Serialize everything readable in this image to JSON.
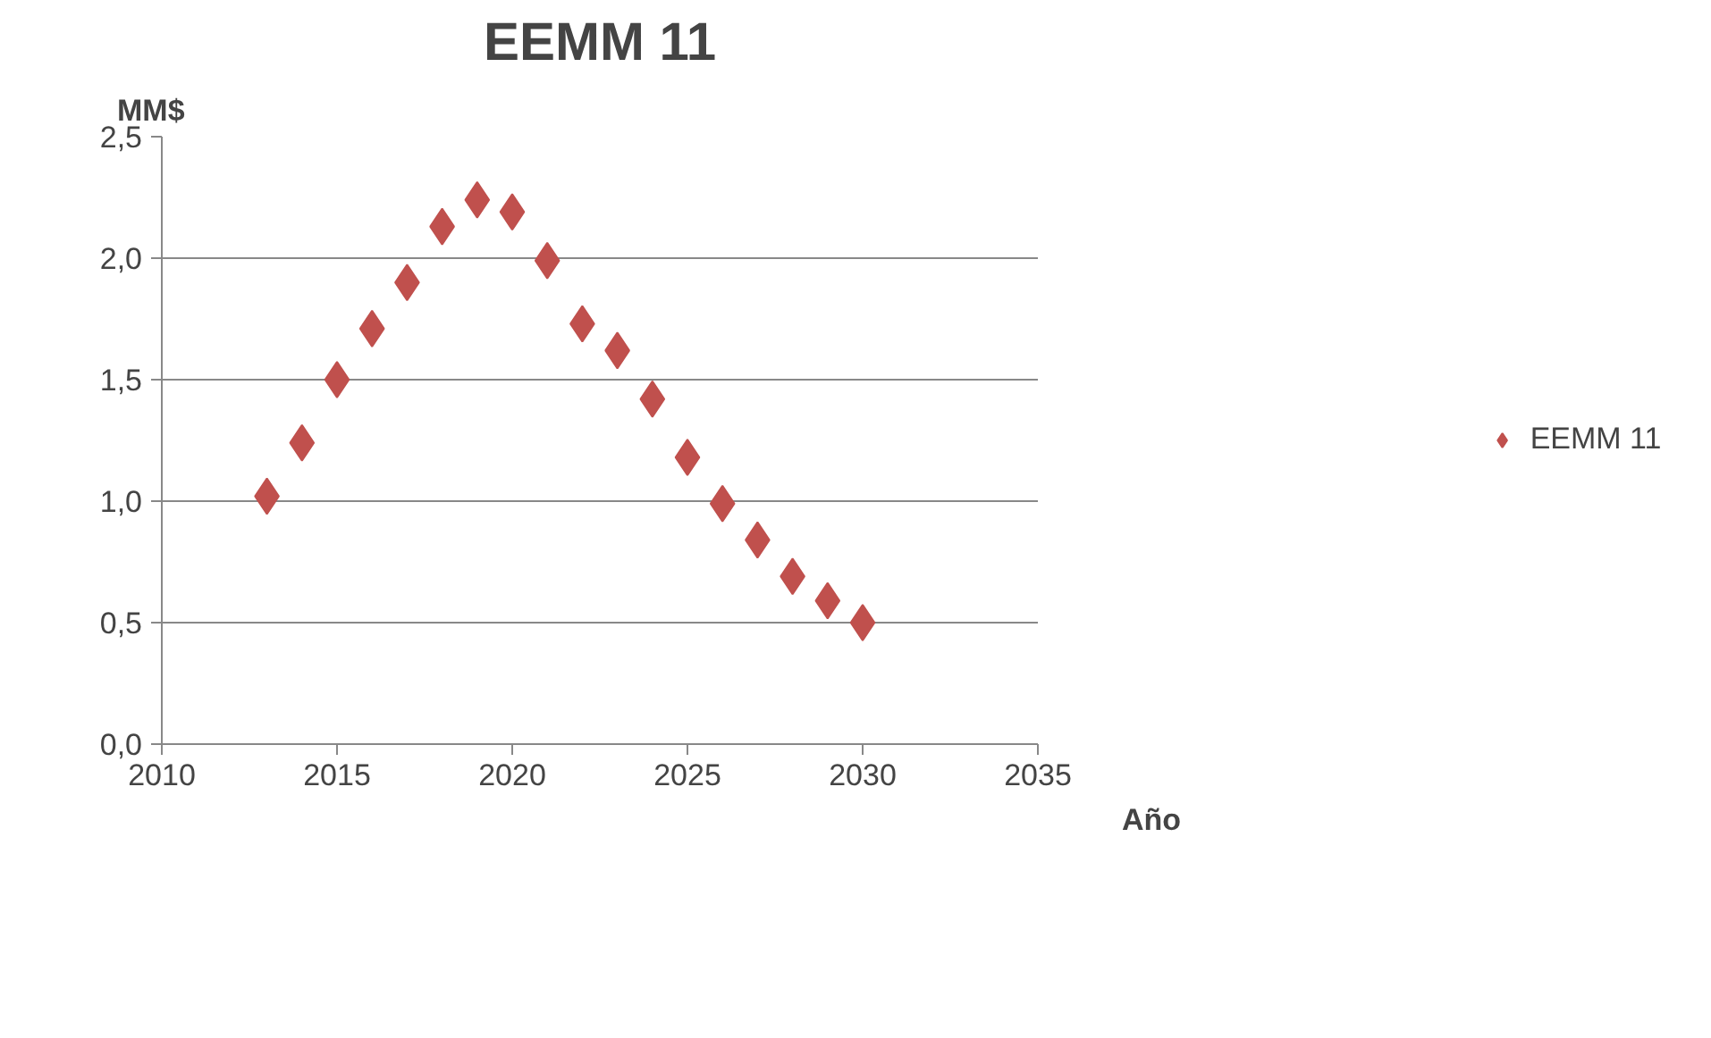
{
  "chart_data": {
    "type": "scatter",
    "title": "EEMM 11",
    "xlabel": "Año",
    "ylabel": "MM$",
    "x": [
      2013,
      2014,
      2015,
      2016,
      2017,
      2018,
      2019,
      2020,
      2021,
      2022,
      2023,
      2024,
      2025,
      2026,
      2027,
      2028,
      2029,
      2030
    ],
    "series": [
      {
        "name": "EEMM 11",
        "color": "#c0504d",
        "values": [
          1.02,
          1.24,
          1.5,
          1.71,
          1.9,
          2.13,
          2.24,
          2.19,
          1.99,
          1.73,
          1.62,
          1.42,
          1.18,
          0.99,
          0.84,
          0.69,
          0.59,
          0.5
        ]
      }
    ],
    "xlim": [
      2010,
      2035
    ],
    "xticks": [
      2010,
      2015,
      2020,
      2025,
      2030,
      2035
    ],
    "ylim": [
      0,
      2.5
    ],
    "yticks": [
      {
        "value": 0,
        "label": "0,0"
      },
      {
        "value": 0.5,
        "label": "0,5"
      },
      {
        "value": 1,
        "label": "1,0"
      },
      {
        "value": 1.5,
        "label": "1,5"
      },
      {
        "value": 2,
        "label": "2,0"
      },
      {
        "value": 2.5,
        "label": "2,5"
      }
    ],
    "grid": "y",
    "legend": "right",
    "marker": "diamond"
  }
}
